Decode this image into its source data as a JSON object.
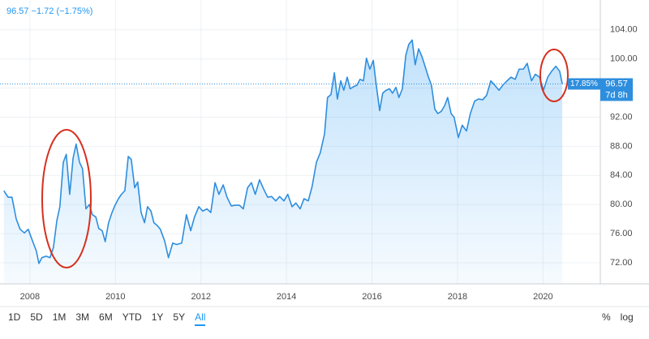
{
  "header": {
    "legend": "96.57 −1.72 (−1.75%)"
  },
  "chart_data": {
    "type": "line",
    "color": "#2e8ede",
    "area": true,
    "grid": true,
    "axis_side": "right",
    "x": [
      2007.39,
      2007.49,
      2007.58,
      2007.68,
      2007.77,
      2007.87,
      2007.96,
      2008.06,
      2008.15,
      2008.21,
      2008.28,
      2008.38,
      2008.47,
      2008.55,
      2008.63,
      2008.7,
      2008.78,
      2008.85,
      2008.93,
      2009.01,
      2009.08,
      2009.16,
      2009.23,
      2009.31,
      2009.39,
      2009.46,
      2009.54,
      2009.61,
      2009.69,
      2009.76,
      2009.84,
      2009.92,
      2009.99,
      2010.07,
      2010.14,
      2010.22,
      2010.3,
      2010.37,
      2010.45,
      2010.52,
      2010.6,
      2010.68,
      2010.75,
      2010.83,
      2010.9,
      2010.98,
      2011.05,
      2011.15,
      2011.24,
      2011.34,
      2011.43,
      2011.55,
      2011.66,
      2011.76,
      2011.85,
      2011.95,
      2012.04,
      2012.14,
      2012.23,
      2012.33,
      2012.42,
      2012.52,
      2012.61,
      2012.71,
      2012.8,
      2012.9,
      2012.99,
      2013.09,
      2013.18,
      2013.27,
      2013.37,
      2013.46,
      2013.56,
      2013.65,
      2013.75,
      2013.84,
      2013.94,
      2014.03,
      2014.13,
      2014.22,
      2014.32,
      2014.41,
      2014.51,
      2014.6,
      2014.7,
      2014.79,
      2014.89,
      2014.96,
      2015.04,
      2015.12,
      2015.19,
      2015.27,
      2015.34,
      2015.42,
      2015.49,
      2015.57,
      2015.65,
      2015.72,
      2015.8,
      2015.87,
      2015.95,
      2016.03,
      2016.1,
      2016.18,
      2016.25,
      2016.33,
      2016.41,
      2016.48,
      2016.56,
      2016.63,
      2016.71,
      2016.79,
      2016.86,
      2016.94,
      2017.01,
      2017.09,
      2017.17,
      2017.24,
      2017.32,
      2017.39,
      2017.47,
      2017.54,
      2017.62,
      2017.7,
      2017.77,
      2017.85,
      2017.92,
      2018.02,
      2018.11,
      2018.21,
      2018.3,
      2018.4,
      2018.49,
      2018.59,
      2018.68,
      2018.78,
      2018.87,
      2018.97,
      2019.06,
      2019.16,
      2019.25,
      2019.35,
      2019.44,
      2019.54,
      2019.63,
      2019.73,
      2019.82,
      2019.92,
      2020.01,
      2020.11,
      2020.2,
      2020.3,
      2020.39,
      2020.45
    ],
    "values": [
      81.9,
      81.0,
      81.0,
      78.0,
      76.6,
      76.1,
      76.6,
      75.0,
      73.6,
      71.9,
      72.7,
      72.9,
      72.7,
      74.1,
      77.8,
      79.7,
      85.8,
      86.9,
      81.4,
      86.4,
      88.3,
      85.8,
      84.9,
      79.4,
      80.0,
      78.6,
      78.3,
      76.7,
      76.4,
      74.9,
      77.5,
      78.9,
      79.9,
      80.8,
      81.4,
      81.9,
      86.6,
      86.2,
      82.3,
      83.1,
      78.9,
      77.5,
      79.7,
      79.1,
      77.5,
      77.1,
      76.6,
      75.0,
      72.7,
      74.7,
      74.5,
      74.7,
      78.6,
      76.4,
      78.3,
      79.7,
      79.1,
      79.4,
      78.9,
      83.0,
      81.4,
      82.7,
      81.0,
      79.8,
      79.9,
      79.9,
      79.4,
      82.3,
      83.0,
      81.4,
      83.4,
      82.2,
      81.0,
      81.1,
      80.5,
      81.1,
      80.5,
      81.4,
      79.7,
      80.2,
      79.4,
      80.8,
      80.5,
      82.5,
      85.8,
      87.1,
      89.7,
      94.7,
      95.1,
      98.1,
      94.5,
      97.0,
      95.7,
      97.5,
      95.9,
      96.2,
      96.4,
      97.2,
      97.0,
      100.1,
      98.6,
      99.8,
      96.4,
      92.9,
      95.3,
      95.7,
      95.9,
      95.3,
      96.1,
      94.7,
      95.9,
      100.5,
      102.0,
      102.6,
      99.2,
      101.4,
      100.3,
      99.0,
      97.5,
      96.4,
      93.1,
      92.5,
      92.8,
      93.6,
      94.7,
      92.5,
      92.0,
      89.2,
      90.9,
      90.1,
      92.5,
      94.2,
      94.5,
      94.4,
      95.0,
      97.0,
      96.4,
      95.7,
      96.4,
      97.0,
      97.5,
      97.2,
      98.6,
      98.6,
      99.4,
      97.0,
      97.9,
      97.5,
      95.7,
      97.5,
      98.3,
      99.0,
      98.3,
      96.57
    ],
    "xlim": [
      2007.3,
      2021.34
    ],
    "xticks": [
      2008,
      2010,
      2012,
      2014,
      2016,
      2018,
      2020
    ],
    "ylim": [
      69.1,
      108.1
    ],
    "yticks": [
      {
        "value": 72,
        "label": "72.00"
      },
      {
        "value": 76,
        "label": "76.00"
      },
      {
        "value": 80,
        "label": "80.00"
      },
      {
        "value": 84,
        "label": "84.00"
      },
      {
        "value": 88,
        "label": "88.00"
      },
      {
        "value": 92,
        "label": "92.00"
      },
      {
        "value": 96,
        "label": "96.00"
      },
      {
        "value": 100,
        "label": "100.00"
      },
      {
        "value": 104,
        "label": "104.00"
      }
    ],
    "price_line": {
      "value": 96.57,
      "label": "96.57",
      "percent_label": "17.85%",
      "countdown_label": "7d 8h"
    }
  },
  "toolbar": {
    "ranges": [
      "1D",
      "5D",
      "1M",
      "3M",
      "6M",
      "YTD",
      "1Y",
      "5Y",
      "All"
    ],
    "selected": "All",
    "options": [
      "%",
      "log"
    ]
  }
}
